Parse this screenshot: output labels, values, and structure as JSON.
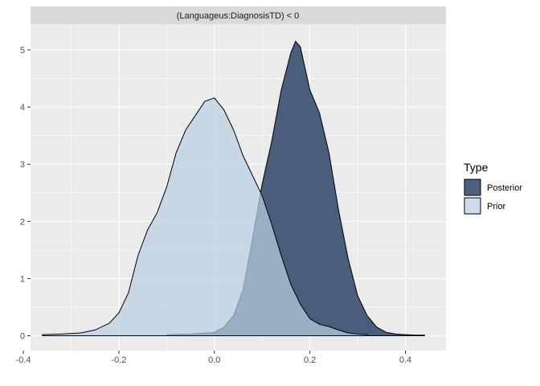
{
  "chart_data": {
    "type": "area",
    "title": "",
    "xlabel": "",
    "ylabel": "",
    "facet_label": "(Languageus:DiagnosisTD) < 0",
    "xlim": [
      -0.385,
      0.485
    ],
    "ylim": [
      -0.26,
      5.45
    ],
    "x_ticks": [
      -0.4,
      -0.2,
      0.0,
      0.2,
      0.4
    ],
    "x_tick_labels": [
      "-0.4",
      "-0.2",
      "0.0",
      "0.2",
      "0.4"
    ],
    "y_ticks": [
      0,
      1,
      2,
      3,
      4,
      5
    ],
    "y_tick_labels": [
      "0",
      "1",
      "2",
      "3",
      "4",
      "5"
    ],
    "grid": true,
    "legend": {
      "title": "Type",
      "position": "right",
      "entries": [
        "Posterior",
        "Prior"
      ]
    },
    "series": [
      {
        "name": "Prior",
        "color": "#b9cfe3",
        "x": [
          -0.36,
          -0.32,
          -0.28,
          -0.25,
          -0.22,
          -0.2,
          -0.18,
          -0.16,
          -0.14,
          -0.12,
          -0.1,
          -0.08,
          -0.06,
          -0.04,
          -0.02,
          0.0,
          0.02,
          0.04,
          0.06,
          0.08,
          0.1,
          0.12,
          0.14,
          0.16,
          0.18,
          0.2,
          0.22,
          0.24,
          0.26,
          0.28,
          0.3,
          0.32
        ],
        "y": [
          0.02,
          0.03,
          0.05,
          0.1,
          0.22,
          0.4,
          0.75,
          1.4,
          1.85,
          2.15,
          2.6,
          3.2,
          3.6,
          3.85,
          4.1,
          4.16,
          3.95,
          3.6,
          3.15,
          2.8,
          2.45,
          1.95,
          1.4,
          0.9,
          0.55,
          0.3,
          0.2,
          0.16,
          0.1,
          0.05,
          0.03,
          0.02
        ]
      },
      {
        "name": "Posterior",
        "color": "#2e4469",
        "x": [
          -0.1,
          -0.05,
          0.0,
          0.02,
          0.04,
          0.06,
          0.08,
          0.1,
          0.12,
          0.14,
          0.16,
          0.17,
          0.18,
          0.2,
          0.22,
          0.24,
          0.26,
          0.28,
          0.3,
          0.32,
          0.34,
          0.36,
          0.38,
          0.4,
          0.42,
          0.44
        ],
        "y": [
          0.02,
          0.03,
          0.06,
          0.15,
          0.35,
          0.8,
          1.7,
          2.65,
          3.4,
          4.3,
          4.95,
          5.15,
          5.05,
          4.3,
          3.9,
          3.2,
          2.2,
          1.35,
          0.7,
          0.35,
          0.15,
          0.06,
          0.03,
          0.02,
          0.01,
          0.01
        ]
      }
    ]
  }
}
